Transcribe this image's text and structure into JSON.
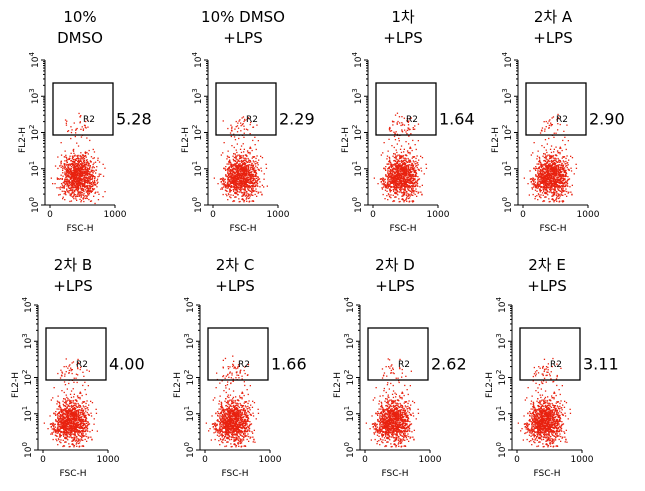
{
  "axes": {
    "xlabel": "FSC-H",
    "ylabel": "FL2-H",
    "xticks": [
      "0",
      "1000"
    ],
    "yticks": [
      {
        "base": "10",
        "exponent": "0"
      },
      {
        "base": "10",
        "exponent": "1"
      },
      {
        "base": "10",
        "exponent": "2"
      },
      {
        "base": "10",
        "exponent": "3"
      },
      {
        "base": "10",
        "exponent": "4"
      }
    ],
    "gate": "R2"
  },
  "panels": [
    {
      "title": [
        "10%",
        "DMSO"
      ],
      "percent": "5.28"
    },
    {
      "title": [
        "10% DMSO",
        "+LPS"
      ],
      "percent": "2.29"
    },
    {
      "title": [
        "1차",
        "+LPS"
      ],
      "percent": "1.64"
    },
    {
      "title": [
        "2차 A",
        "+LPS"
      ],
      "percent": "2.90"
    },
    {
      "title": [
        "2차 B",
        "+LPS"
      ],
      "percent": "4.00"
    },
    {
      "title": [
        "2차 C",
        "+LPS"
      ],
      "percent": "1.66"
    },
    {
      "title": [
        "2차 D",
        "+LPS"
      ],
      "percent": "2.62"
    },
    {
      "title": [
        "2차 E",
        "+LPS"
      ],
      "percent": "3.11"
    }
  ]
}
